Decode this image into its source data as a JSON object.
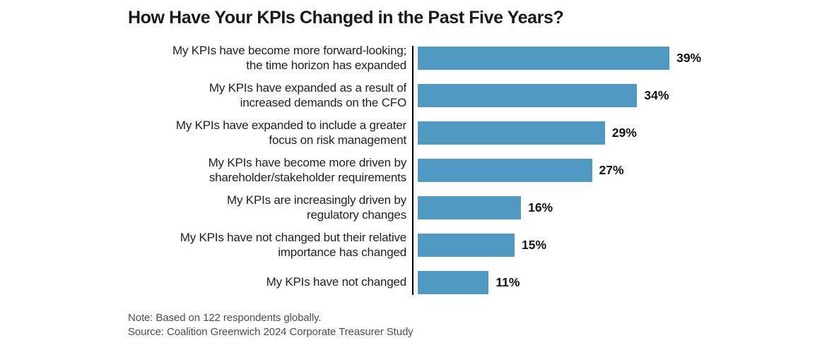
{
  "chart_data": {
    "type": "bar",
    "orientation": "horizontal",
    "title": "How Have Your KPIs Changed in the Past Five Years?",
    "categories": [
      "My KPIs have become more forward-looking;\nthe time horizon has expanded",
      "My KPIs have expanded as a result of\nincreased demands on the CFO",
      "My KPIs have expanded to include a greater\nfocus on risk management",
      "My KPIs have become more driven by\nshareholder/stakeholder requirements",
      "My KPIs are increasingly driven by\nregulatory changes",
      "My KPIs have not changed but their relative\nimportance has changed",
      "My KPIs have not changed"
    ],
    "values": [
      39,
      34,
      29,
      27,
      16,
      15,
      11
    ],
    "value_labels": [
      "39%",
      "34%",
      "29%",
      "27%",
      "16%",
      "15%",
      "11%"
    ],
    "xlabel": "",
    "ylabel": "",
    "xlim": [
      0,
      42
    ],
    "grid": false,
    "legend": false,
    "data_labels_position": "end-of-bar",
    "colors": {
      "bar": "#4f99c2",
      "axis": "#000000",
      "title_text": "#1a1a1a",
      "label_text": "#1f1f1f",
      "value_text": "#111111",
      "footnote_text": "#4d4d4d"
    }
  },
  "footnotes": {
    "note": "Note: Based on 122 respondents globally.",
    "source": "Source: Coalition Greenwich 2024 Corporate Treasurer Study"
  }
}
